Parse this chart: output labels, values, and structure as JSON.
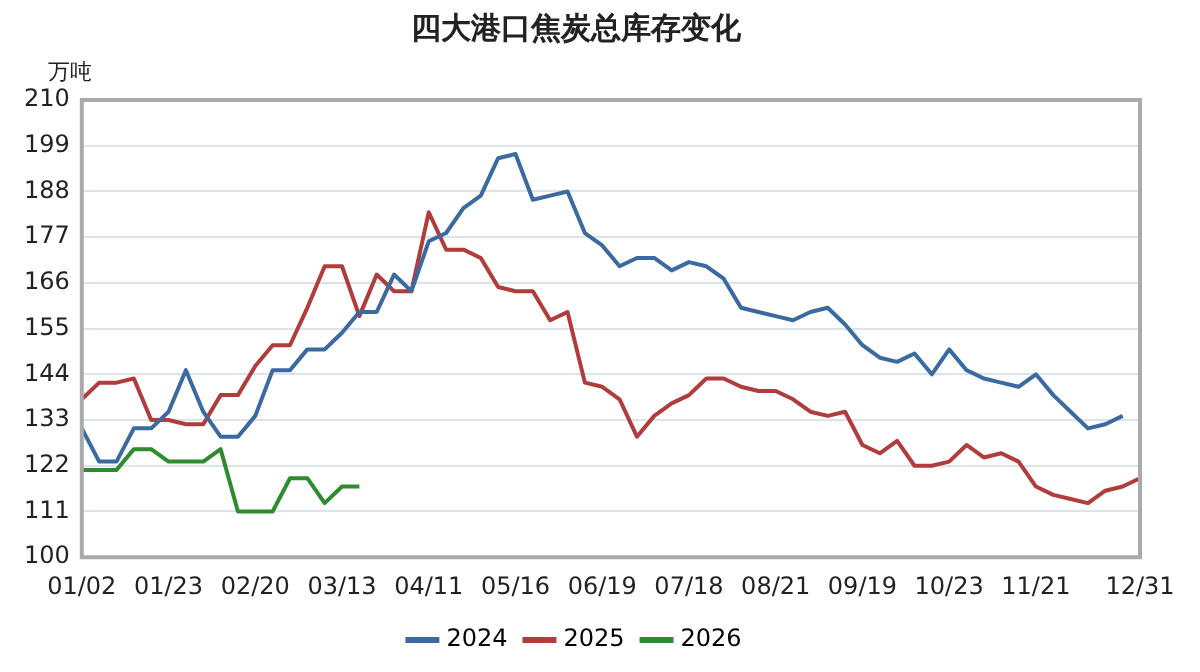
{
  "chart_data": {
    "type": "line",
    "title": "四大港口焦炭总库存变化",
    "ylabel": "万吨",
    "categories": [
      "01/02",
      null,
      null,
      null,
      null,
      "01/23",
      null,
      null,
      null,
      null,
      "02/20",
      null,
      null,
      null,
      null,
      "03/13",
      null,
      null,
      null,
      null,
      "04/11",
      null,
      null,
      null,
      null,
      "05/16",
      null,
      null,
      null,
      null,
      "06/19",
      null,
      null,
      null,
      null,
      "07/18",
      null,
      null,
      null,
      null,
      "08/21",
      null,
      null,
      null,
      null,
      "09/19",
      null,
      null,
      null,
      null,
      "10/23",
      null,
      null,
      null,
      null,
      "11/21",
      null,
      null,
      null,
      null,
      null,
      "12/31"
    ],
    "series": [
      {
        "name": "2024",
        "color": "#3b6aa0",
        "values": [
          131,
          123,
          123,
          131,
          131,
          135,
          145,
          135,
          129,
          129,
          134,
          145,
          145,
          150,
          150,
          154,
          159,
          159,
          168,
          164,
          176,
          178,
          184,
          187,
          196,
          197,
          186,
          187,
          188,
          178,
          175,
          170,
          172,
          172,
          169,
          171,
          170,
          167,
          160,
          159,
          158,
          157,
          159,
          160,
          156,
          151,
          148,
          147,
          149,
          144,
          150,
          145,
          143,
          142,
          141,
          144,
          139,
          135,
          131,
          132,
          134,
          null
        ]
      },
      {
        "name": "2025",
        "color": "#b03c3c",
        "values": [
          138,
          142,
          142,
          143,
          133,
          133,
          132,
          132,
          139,
          139,
          146,
          151,
          151,
          160,
          170,
          170,
          158,
          168,
          164,
          164,
          183,
          174,
          174,
          172,
          165,
          164,
          164,
          157,
          159,
          142,
          141,
          138,
          129,
          134,
          137,
          139,
          143,
          143,
          141,
          140,
          140,
          138,
          135,
          134,
          135,
          127,
          125,
          128,
          122,
          122,
          123,
          127,
          124,
          125,
          123,
          117,
          115,
          114,
          113,
          116,
          117,
          119
        ]
      },
      {
        "name": "2026",
        "color": "#2e8b2e",
        "values": [
          121,
          121,
          121,
          126,
          126,
          123,
          123,
          123,
          126,
          111,
          111,
          111,
          119,
          119,
          113,
          117,
          117,
          null,
          null,
          null,
          null,
          null,
          null,
          null,
          null,
          null,
          null,
          null,
          null,
          null,
          null,
          null,
          null,
          null,
          null,
          null,
          null,
          null,
          null,
          null,
          null,
          null,
          null,
          null,
          null,
          null,
          null,
          null,
          null,
          null,
          null,
          null,
          null,
          null,
          null,
          null,
          null,
          null,
          null,
          null,
          null,
          null
        ]
      }
    ],
    "ylim": [
      100,
      210
    ],
    "yticks": [
      100,
      111,
      122,
      133,
      144,
      155,
      166,
      177,
      188,
      199,
      210
    ],
    "grid": "y",
    "legend": "bottom",
    "marker": "none",
    "line_style": "solid"
  }
}
